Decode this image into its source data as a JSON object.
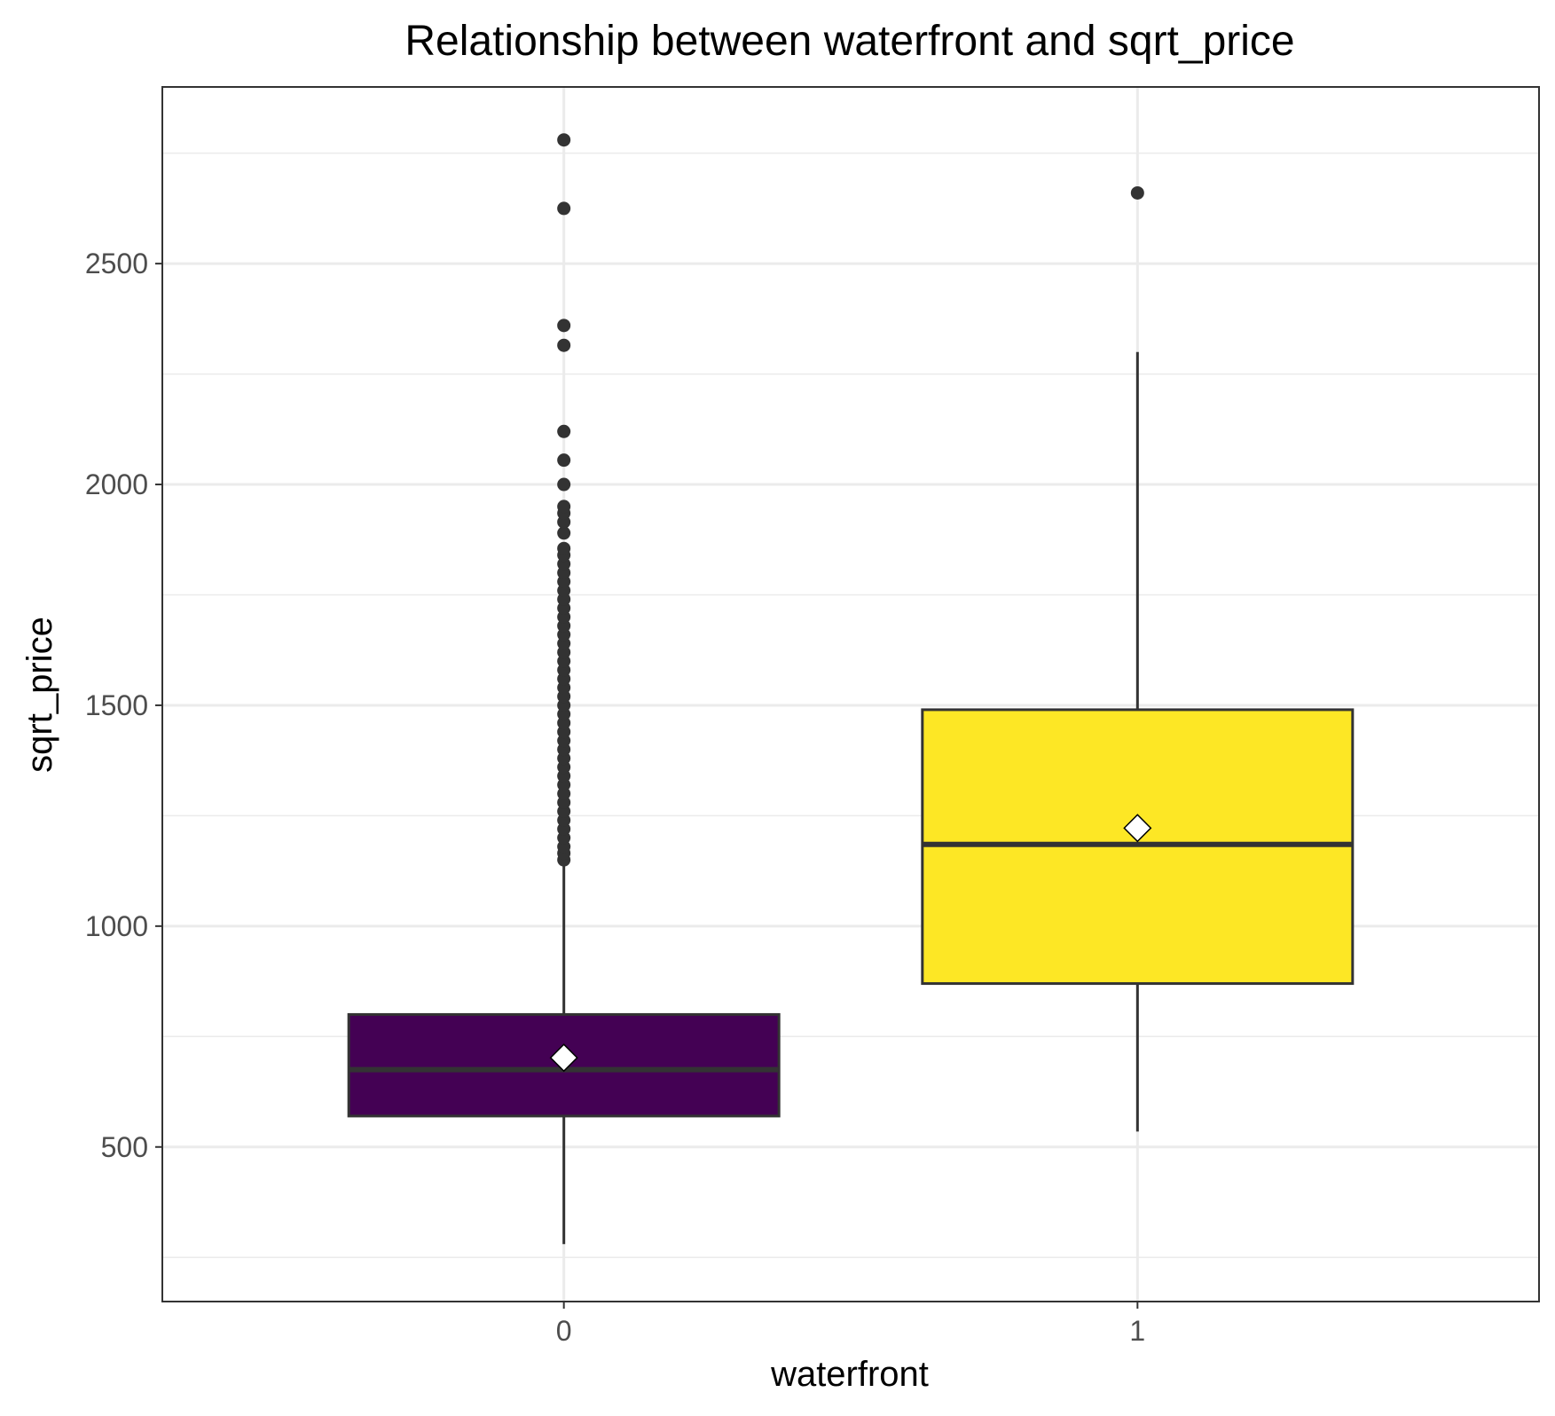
{
  "chart_data": {
    "type": "box",
    "title": "Relationship between waterfront and sqrt_price",
    "xlabel": "waterfront",
    "ylabel": "sqrt_price",
    "categories": [
      "0",
      "1"
    ],
    "ylim": [
      150,
      2900
    ],
    "yticks": [
      500,
      1000,
      1500,
      2000,
      2500
    ],
    "grid": true,
    "legend": "none",
    "boxes": [
      {
        "category": "0",
        "whisker_low": 280,
        "q1": 570,
        "median": 675,
        "q3": 800,
        "whisker_high": 1145,
        "mean": 702,
        "fill": "#440154",
        "outliers": [
          1150,
          1165,
          1180,
          1200,
          1220,
          1240,
          1260,
          1280,
          1300,
          1320,
          1340,
          1360,
          1380,
          1400,
          1420,
          1440,
          1460,
          1480,
          1500,
          1520,
          1540,
          1560,
          1580,
          1600,
          1620,
          1640,
          1660,
          1680,
          1700,
          1720,
          1740,
          1760,
          1780,
          1800,
          1820,
          1840,
          1855,
          1890,
          1915,
          1935,
          1950,
          2000,
          2055,
          2120,
          2315,
          2360,
          2625,
          2780
        ]
      },
      {
        "category": "1",
        "whisker_low": 535,
        "q1": 870,
        "median": 1185,
        "q3": 1490,
        "whisker_high": 2300,
        "mean": 1222,
        "fill": "#FDE725",
        "outliers": [
          2660
        ]
      }
    ]
  }
}
